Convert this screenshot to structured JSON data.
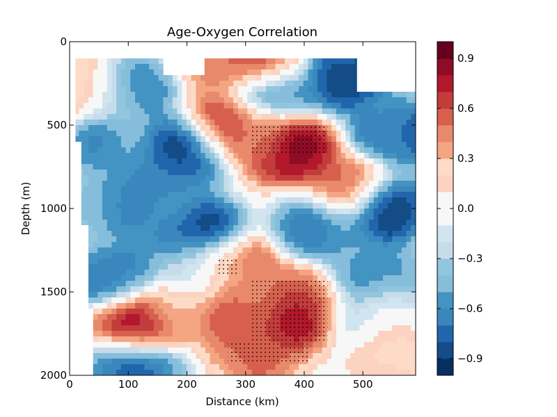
{
  "chart_data": {
    "type": "heatmap",
    "subtype": "filled-contour",
    "title": "Age-Oxygen Correlation",
    "xlabel": "Distance (km)",
    "ylabel": "Depth (m)",
    "xlim": [
      0,
      590
    ],
    "ylim": [
      2000,
      0
    ],
    "y_inverted": true,
    "xticks": [
      "0",
      "100",
      "200",
      "300",
      "400",
      "500"
    ],
    "xtick_values": [
      0,
      100,
      200,
      300,
      400,
      500
    ],
    "yticks": [
      "0",
      "500",
      "1000",
      "1500",
      "2000"
    ],
    "ytick_values": [
      0,
      500,
      1000,
      1500,
      2000
    ],
    "colorbar": {
      "colormap": "RdBu_r",
      "range": [
        -1.0,
        1.0
      ],
      "levels": 20,
      "ticks": [
        "0.9",
        "0.6",
        "0.3",
        "0.0",
        "−0.3",
        "−0.6",
        "−0.9"
      ],
      "tick_values": [
        0.9,
        0.6,
        0.3,
        0.0,
        -0.3,
        -0.6,
        -0.9
      ],
      "colors": [
        "#053061",
        "#134c87",
        "#2166ac",
        "#3a87bd",
        "#4393c3",
        "#86bdda",
        "#92c5de",
        "#c7dcea",
        "#d1e5f0",
        "#f7f7f7",
        "#f7f7f7",
        "#fbd3c0",
        "#fddbc7",
        "#f4a582",
        "#e8896c",
        "#d6604d",
        "#c33c3c",
        "#b2182b",
        "#8e0c25",
        "#67001f"
      ]
    },
    "no_data_regions": [
      {
        "x": [
          0,
          10
        ],
        "depth": [
          100,
          600
        ]
      },
      {
        "x": [
          0,
          20
        ],
        "depth": [
          600,
          1100
        ]
      },
      {
        "x": [
          0,
          32
        ],
        "depth": [
          1100,
          1600
        ]
      },
      {
        "x": [
          0,
          40
        ],
        "depth": [
          1600,
          2000
        ]
      },
      {
        "x": [
          160,
          230
        ],
        "depth": [
          100,
          200
        ]
      },
      {
        "x": [
          490,
          590
        ],
        "depth": [
          100,
          300
        ]
      }
    ],
    "blobs": [
      {
        "x": 360,
        "depth": 1650,
        "value": 0.95
      },
      {
        "x": 300,
        "depth": 1650,
        "value": 0.55
      },
      {
        "x": 390,
        "depth": 1550,
        "value": 0.5
      },
      {
        "x": 320,
        "depth": 1850,
        "value": 0.55
      },
      {
        "x": 380,
        "depth": 650,
        "value": 0.9
      },
      {
        "x": 320,
        "depth": 560,
        "value": 0.5
      },
      {
        "x": 270,
        "depth": 1350,
        "value": 0.7
      },
      {
        "x": 310,
        "depth": 1550,
        "value": 0.5
      },
      {
        "x": 115,
        "depth": 1700,
        "value": 0.8
      },
      {
        "x": 270,
        "depth": 500,
        "value": 0.7
      },
      {
        "x": 470,
        "depth": 880,
        "value": 0.6
      },
      {
        "x": 285,
        "depth": 120,
        "value": 0.6
      },
      {
        "x": 335,
        "depth": 120,
        "value": 0.6
      },
      {
        "x": 40,
        "depth": 300,
        "value": 0.5
      },
      {
        "x": 180,
        "depth": 1600,
        "value": 0.4
      },
      {
        "x": 560,
        "depth": 1800,
        "value": 0.3
      },
      {
        "x": 80,
        "depth": 1400,
        "value": -0.7
      },
      {
        "x": 220,
        "depth": 1150,
        "value": -0.9
      },
      {
        "x": 200,
        "depth": 640,
        "value": -0.9
      },
      {
        "x": 90,
        "depth": 300,
        "value": -0.8
      },
      {
        "x": 470,
        "depth": 200,
        "value": -0.95
      },
      {
        "x": 560,
        "depth": 550,
        "value": -0.8
      },
      {
        "x": 540,
        "depth": 1000,
        "value": -0.95
      },
      {
        "x": 110,
        "depth": 1950,
        "value": -0.8
      },
      {
        "x": 520,
        "depth": 1400,
        "value": -0.6
      },
      {
        "x": 150,
        "depth": 850,
        "value": -0.7
      },
      {
        "x": 430,
        "depth": 1100,
        "value": -0.7
      },
      {
        "x": 80,
        "depth": 1000,
        "value": -0.6
      },
      {
        "x": 350,
        "depth": 300,
        "value": -0.7
      },
      {
        "x": 60,
        "depth": 600,
        "value": -0.6
      },
      {
        "x": 230,
        "depth": 1380,
        "value": -0.4
      },
      {
        "x": 530,
        "depth": 1650,
        "value": -0.2
      }
    ],
    "stipple_regions": [
      {
        "x": [
          310,
          440
        ],
        "depth": [
          500,
          680
        ]
      },
      {
        "x": [
          250,
          290
        ],
        "depth": [
          1290,
          1400
        ]
      },
      {
        "x": [
          310,
          440
        ],
        "depth": [
          1420,
          1800
        ]
      },
      {
        "x": [
          270,
          410
        ],
        "depth": [
          1800,
          1920
        ]
      }
    ]
  }
}
